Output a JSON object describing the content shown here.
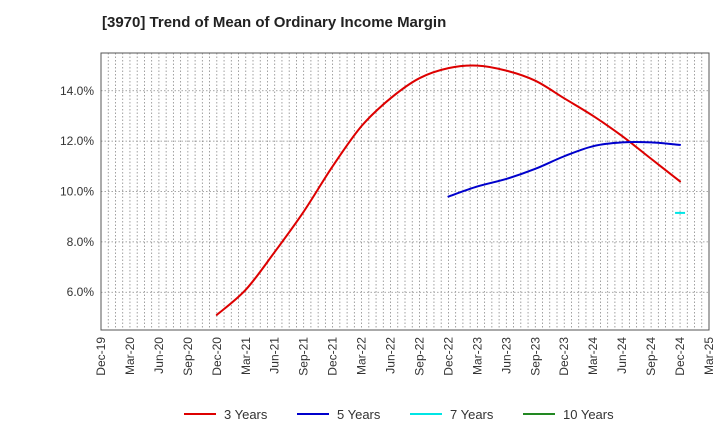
{
  "chart_data": {
    "type": "line",
    "title": "[3970]  Trend of Mean of Ordinary Income Margin",
    "x_ticks": [
      "Dec-19",
      "Mar-20",
      "Jun-20",
      "Sep-20",
      "Dec-20",
      "Mar-21",
      "Jun-21",
      "Sep-21",
      "Dec-21",
      "Mar-22",
      "Jun-22",
      "Sep-22",
      "Dec-22",
      "Mar-23",
      "Jun-23",
      "Sep-23",
      "Dec-23",
      "Mar-24",
      "Jun-24",
      "Sep-24",
      "Dec-24",
      "Mar-25"
    ],
    "y_ticks": [
      "6.0%",
      "8.0%",
      "10.0%",
      "12.0%",
      "14.0%"
    ],
    "y_tick_values": [
      6,
      8,
      10,
      12,
      14
    ],
    "ylim": [
      4.5,
      15.5
    ],
    "grid": "dotted",
    "legend_position": "bottom",
    "series": [
      {
        "name": "3 Years",
        "color": "#dd0000",
        "x": [
          "Dec-20",
          "Mar-21",
          "Jun-21",
          "Sep-21",
          "Dec-21",
          "Mar-22",
          "Jun-22",
          "Sep-22",
          "Dec-22",
          "Mar-23",
          "Jun-23",
          "Sep-23",
          "Dec-23",
          "Mar-24",
          "Jun-24",
          "Sep-24",
          "Dec-24"
        ],
        "values": [
          5.1,
          6.1,
          7.6,
          9.2,
          11.0,
          12.6,
          13.7,
          14.5,
          14.9,
          15.0,
          14.8,
          14.4,
          13.7,
          13.0,
          12.2,
          11.3,
          10.4
        ]
      },
      {
        "name": "5 Years",
        "color": "#0000cc",
        "x": [
          "Dec-22",
          "Mar-23",
          "Jun-23",
          "Sep-23",
          "Dec-23",
          "Mar-24",
          "Jun-24",
          "Sep-24",
          "Dec-24"
        ],
        "values": [
          9.8,
          10.2,
          10.5,
          10.9,
          11.4,
          11.8,
          11.95,
          11.95,
          11.85
        ]
      },
      {
        "name": "7 Years",
        "color": "#00e5e5",
        "x": [
          "Dec-24"
        ],
        "values": [
          9.15
        ]
      },
      {
        "name": "10 Years",
        "color": "#228822",
        "x": [],
        "values": []
      }
    ]
  }
}
